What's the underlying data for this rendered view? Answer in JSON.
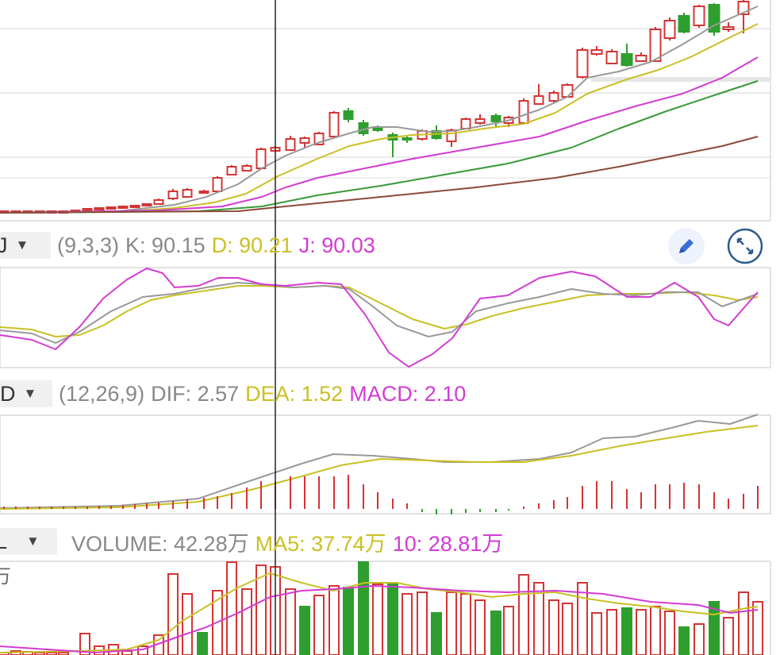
{
  "colors": {
    "up": "#d43434",
    "down": "#2e9e2e",
    "ma_gray": "#999999",
    "ma_yellow": "#c9c023",
    "ma_magenta": "#d33bd3",
    "ma_green": "#3a9a3a",
    "ma_brown": "#8b4a3a",
    "grid": "#e2e2e2"
  },
  "kdj": {
    "selector": "J",
    "params": "(9,3,3)",
    "k": "K: 90.15",
    "d": "D: 90.21",
    "j": "J: 90.03"
  },
  "macd": {
    "selector": "D",
    "params": "(12,26,9)",
    "dif": "DIF: 2.57",
    "dea": "DEA: 1.52",
    "macd": "MACD: 2.10"
  },
  "volume": {
    "selector": "L",
    "label": "VOLUME: 42.28万",
    "ma5": "MA5: 37.74万",
    "ma10": "10: 28.81万",
    "axis_unit": "万"
  },
  "icons": {
    "edit": "pencil-icon",
    "expand": "expand-icon"
  }
}
